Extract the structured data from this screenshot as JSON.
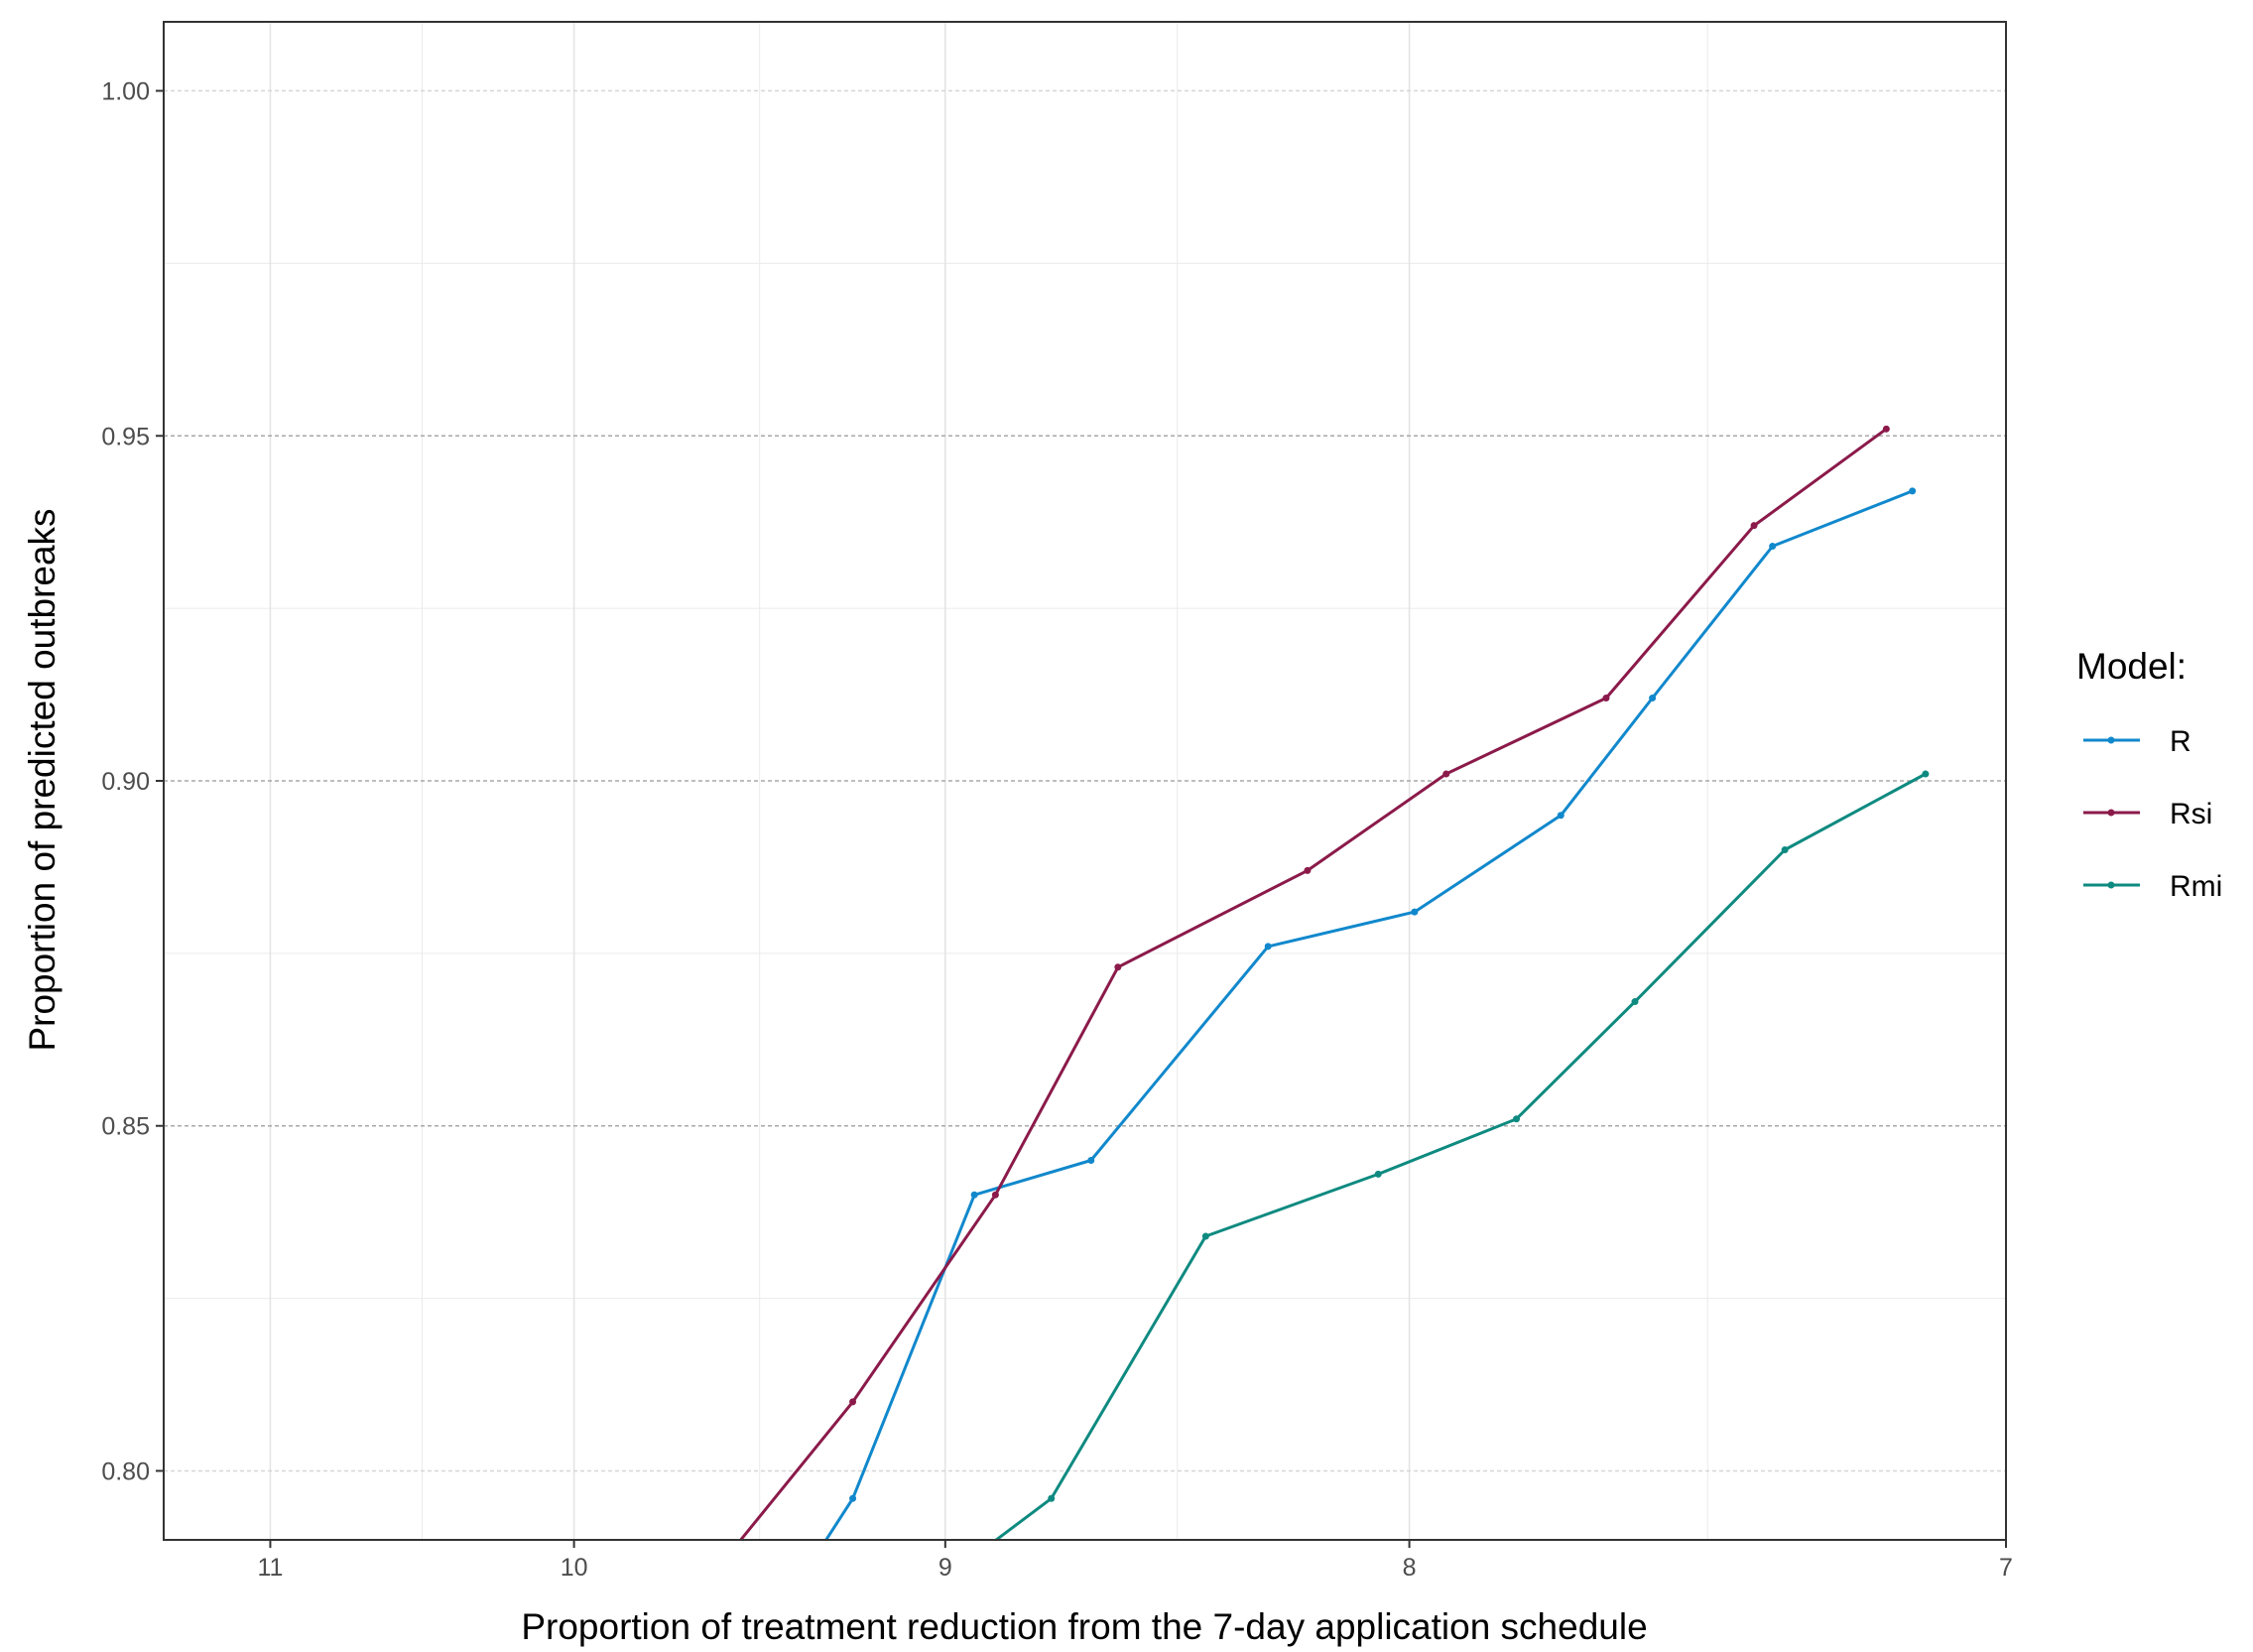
{
  "chart_data": {
    "type": "line",
    "xlabel": "Proportion of treatment reduction from the 7-day application schedule",
    "ylabel": "Proportion of predicted outbreaks",
    "x_scale": "reciprocal",
    "xlim": [
      11.4,
      7
    ],
    "ylim": [
      0.79,
      1.01
    ],
    "x_ticks": [
      11,
      10,
      9,
      8,
      7
    ],
    "y_ticks": [
      0.8,
      0.85,
      0.9,
      0.95,
      1.0
    ],
    "x_tick_labels": [
      "11",
      "10",
      "9",
      "8",
      "7"
    ],
    "y_tick_labels": [
      "0.80",
      "0.85",
      "0.90",
      "0.95",
      "1.00"
    ],
    "grid": true,
    "legend": {
      "title": "Model:",
      "position": "right"
    },
    "series": [
      {
        "name": "R",
        "color": "#1188cc",
        "x": [
          9.31,
          9.23,
          8.93,
          8.66,
          8.28,
          7.99,
          7.72,
          7.56,
          7.36,
          7.14
        ],
        "y": [
          0.789,
          0.796,
          0.84,
          0.845,
          0.876,
          0.881,
          0.895,
          0.912,
          0.934,
          0.942
        ]
      },
      {
        "name": "Rsi",
        "color": "#8b1a4a",
        "x": [
          9.54,
          9.23,
          8.88,
          8.6,
          8.2,
          7.93,
          7.64,
          7.39,
          7.18
        ],
        "y": [
          0.789,
          0.81,
          0.84,
          0.873,
          0.887,
          0.901,
          0.912,
          0.937,
          0.951
        ]
      },
      {
        "name": "Rmi",
        "color": "#0e8a80",
        "x": [
          8.9,
          8.75,
          8.41,
          8.06,
          7.8,
          7.59,
          7.34,
          7.12
        ],
        "y": [
          0.789,
          0.796,
          0.834,
          0.843,
          0.851,
          0.868,
          0.89,
          0.901
        ]
      }
    ]
  }
}
